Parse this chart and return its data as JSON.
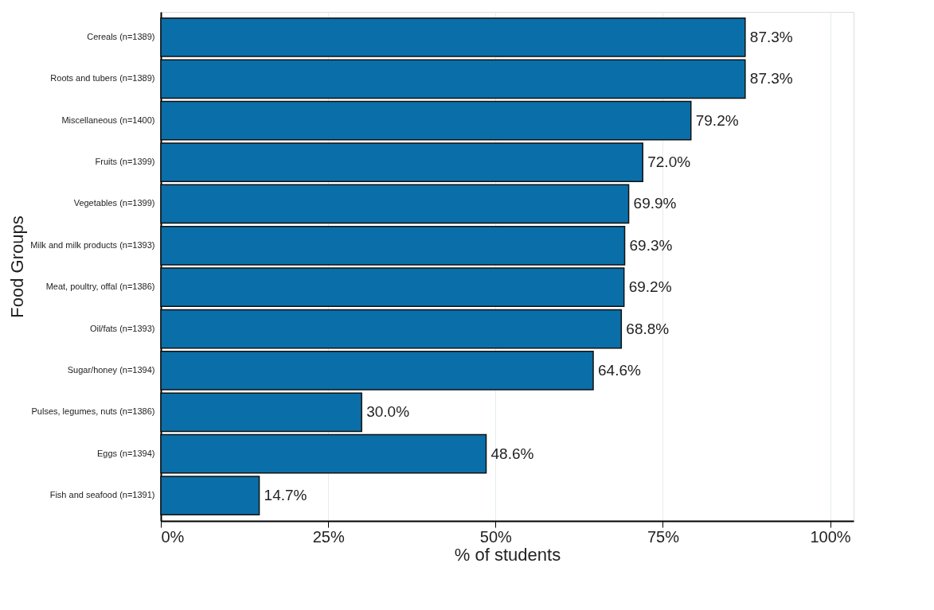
{
  "chart_data": {
    "type": "bar",
    "orientation": "horizontal",
    "xlabel": "% of students",
    "ylabel": "Food Groups",
    "categories": [
      "Cereals (n=1389)",
      "Roots and tubers (n=1389)",
      "Miscellaneous (n=1400)",
      "Fruits (n=1399)",
      "Vegetables (n=1399)",
      "Milk and milk products (n=1393)",
      "Meat, poultry, offal (n=1386)",
      "Oil/fats (n=1393)",
      "Sugar/honey (n=1394)",
      "Pulses, legumes, nuts (n=1386)",
      "Eggs (n=1394)",
      "Fish and seafood (n=1391)"
    ],
    "values": [
      87.3,
      87.3,
      79.2,
      72.0,
      69.9,
      69.3,
      69.2,
      68.8,
      64.6,
      30.0,
      48.6,
      14.7
    ],
    "value_labels": [
      "87.3%",
      "87.3%",
      "79.2%",
      "72.0%",
      "69.9%",
      "69.3%",
      "69.2%",
      "68.8%",
      "64.6%",
      "30.0%",
      "48.6%",
      "14.7%"
    ],
    "color": "#0a6fa8",
    "xlim": [
      0,
      103.5
    ],
    "xticks": [
      {
        "value": 0,
        "label": "0%"
      },
      {
        "value": 25,
        "label": "25%"
      },
      {
        "value": 50,
        "label": "50%"
      },
      {
        "value": 75,
        "label": "75%"
      },
      {
        "value": 100,
        "label": "100%"
      }
    ],
    "grid": "x"
  }
}
